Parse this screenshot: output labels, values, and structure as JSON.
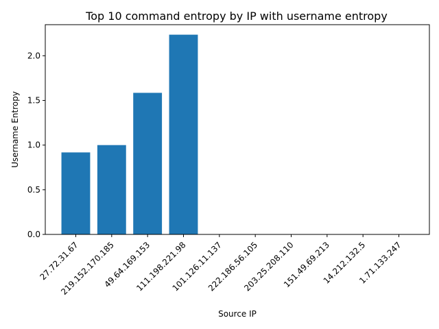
{
  "chart_data": {
    "type": "bar",
    "title": "Top 10 command entropy by IP with username entropy",
    "xlabel": "Source IP",
    "ylabel": "Username Entropy",
    "categories": [
      "27.72.31.67",
      "219.152.170.185",
      "49.64.169.153",
      "111.198.221.98",
      "101.126.11.137",
      "222.186.56.105",
      "203.25.208.110",
      "151.49.69.213",
      "14.212.132.5",
      "1.71.133.247"
    ],
    "values": [
      0.918,
      1.0,
      1.585,
      2.236,
      0,
      0,
      0,
      0,
      0,
      0
    ],
    "ylim": [
      0,
      2.348
    ],
    "yticks": [
      0.0,
      0.5,
      1.0,
      1.5,
      2.0
    ],
    "grid": false,
    "bar_color": "#1f77b4"
  }
}
